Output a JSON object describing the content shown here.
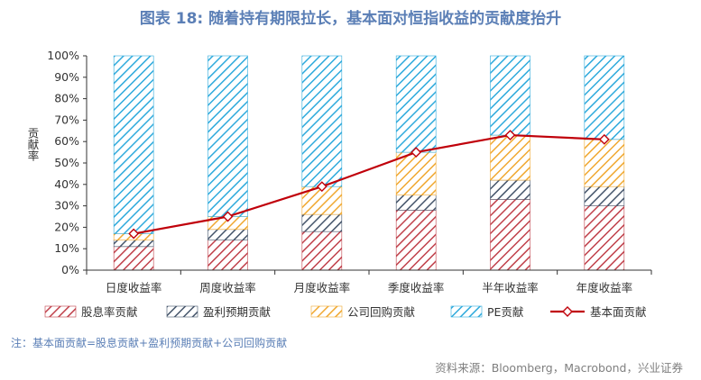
{
  "header": {
    "title": "图表 18: 随着持有期限拉长，基本面对恒指收益的贡献度抬升"
  },
  "footer": {
    "note": "注：基本面贡献=股息贡献+盈利预期贡献+公司回购贡献",
    "source": "资料来源：Bloomberg，Macrobond，兴业证券"
  },
  "chart_data": {
    "type": "bar",
    "stacked": true,
    "ylabel": "贡献率",
    "ylim": [
      0,
      100
    ],
    "yticks": [
      "0%",
      "10%",
      "20%",
      "30%",
      "40%",
      "50%",
      "60%",
      "70%",
      "80%",
      "90%",
      "100%"
    ],
    "categories": [
      "日度收益率",
      "周度收益率",
      "月度收益率",
      "季度收益率",
      "半年收益率",
      "年度收益率"
    ],
    "series": [
      {
        "name": "股息率贡献",
        "kind": "bar",
        "color": "#c0404a",
        "values": [
          11,
          14,
          18,
          28,
          33,
          30
        ]
      },
      {
        "name": "盈利预期贡献",
        "kind": "bar",
        "color": "#44546a",
        "values": [
          3,
          5,
          8,
          7,
          9,
          9
        ]
      },
      {
        "name": "公司回购贡献",
        "kind": "bar",
        "color": "#f0a830",
        "values": [
          3,
          6,
          13,
          20,
          21,
          22
        ]
      },
      {
        "name": "PE贡献",
        "kind": "bar",
        "color": "#2eaadc",
        "values": [
          83,
          75,
          61,
          45,
          37,
          39
        ]
      },
      {
        "name": "基本面贡献",
        "kind": "line",
        "color": "#c0000a",
        "values": [
          17,
          25,
          39,
          55,
          63,
          61
        ]
      }
    ],
    "legend_position": "bottom",
    "grid": false
  }
}
